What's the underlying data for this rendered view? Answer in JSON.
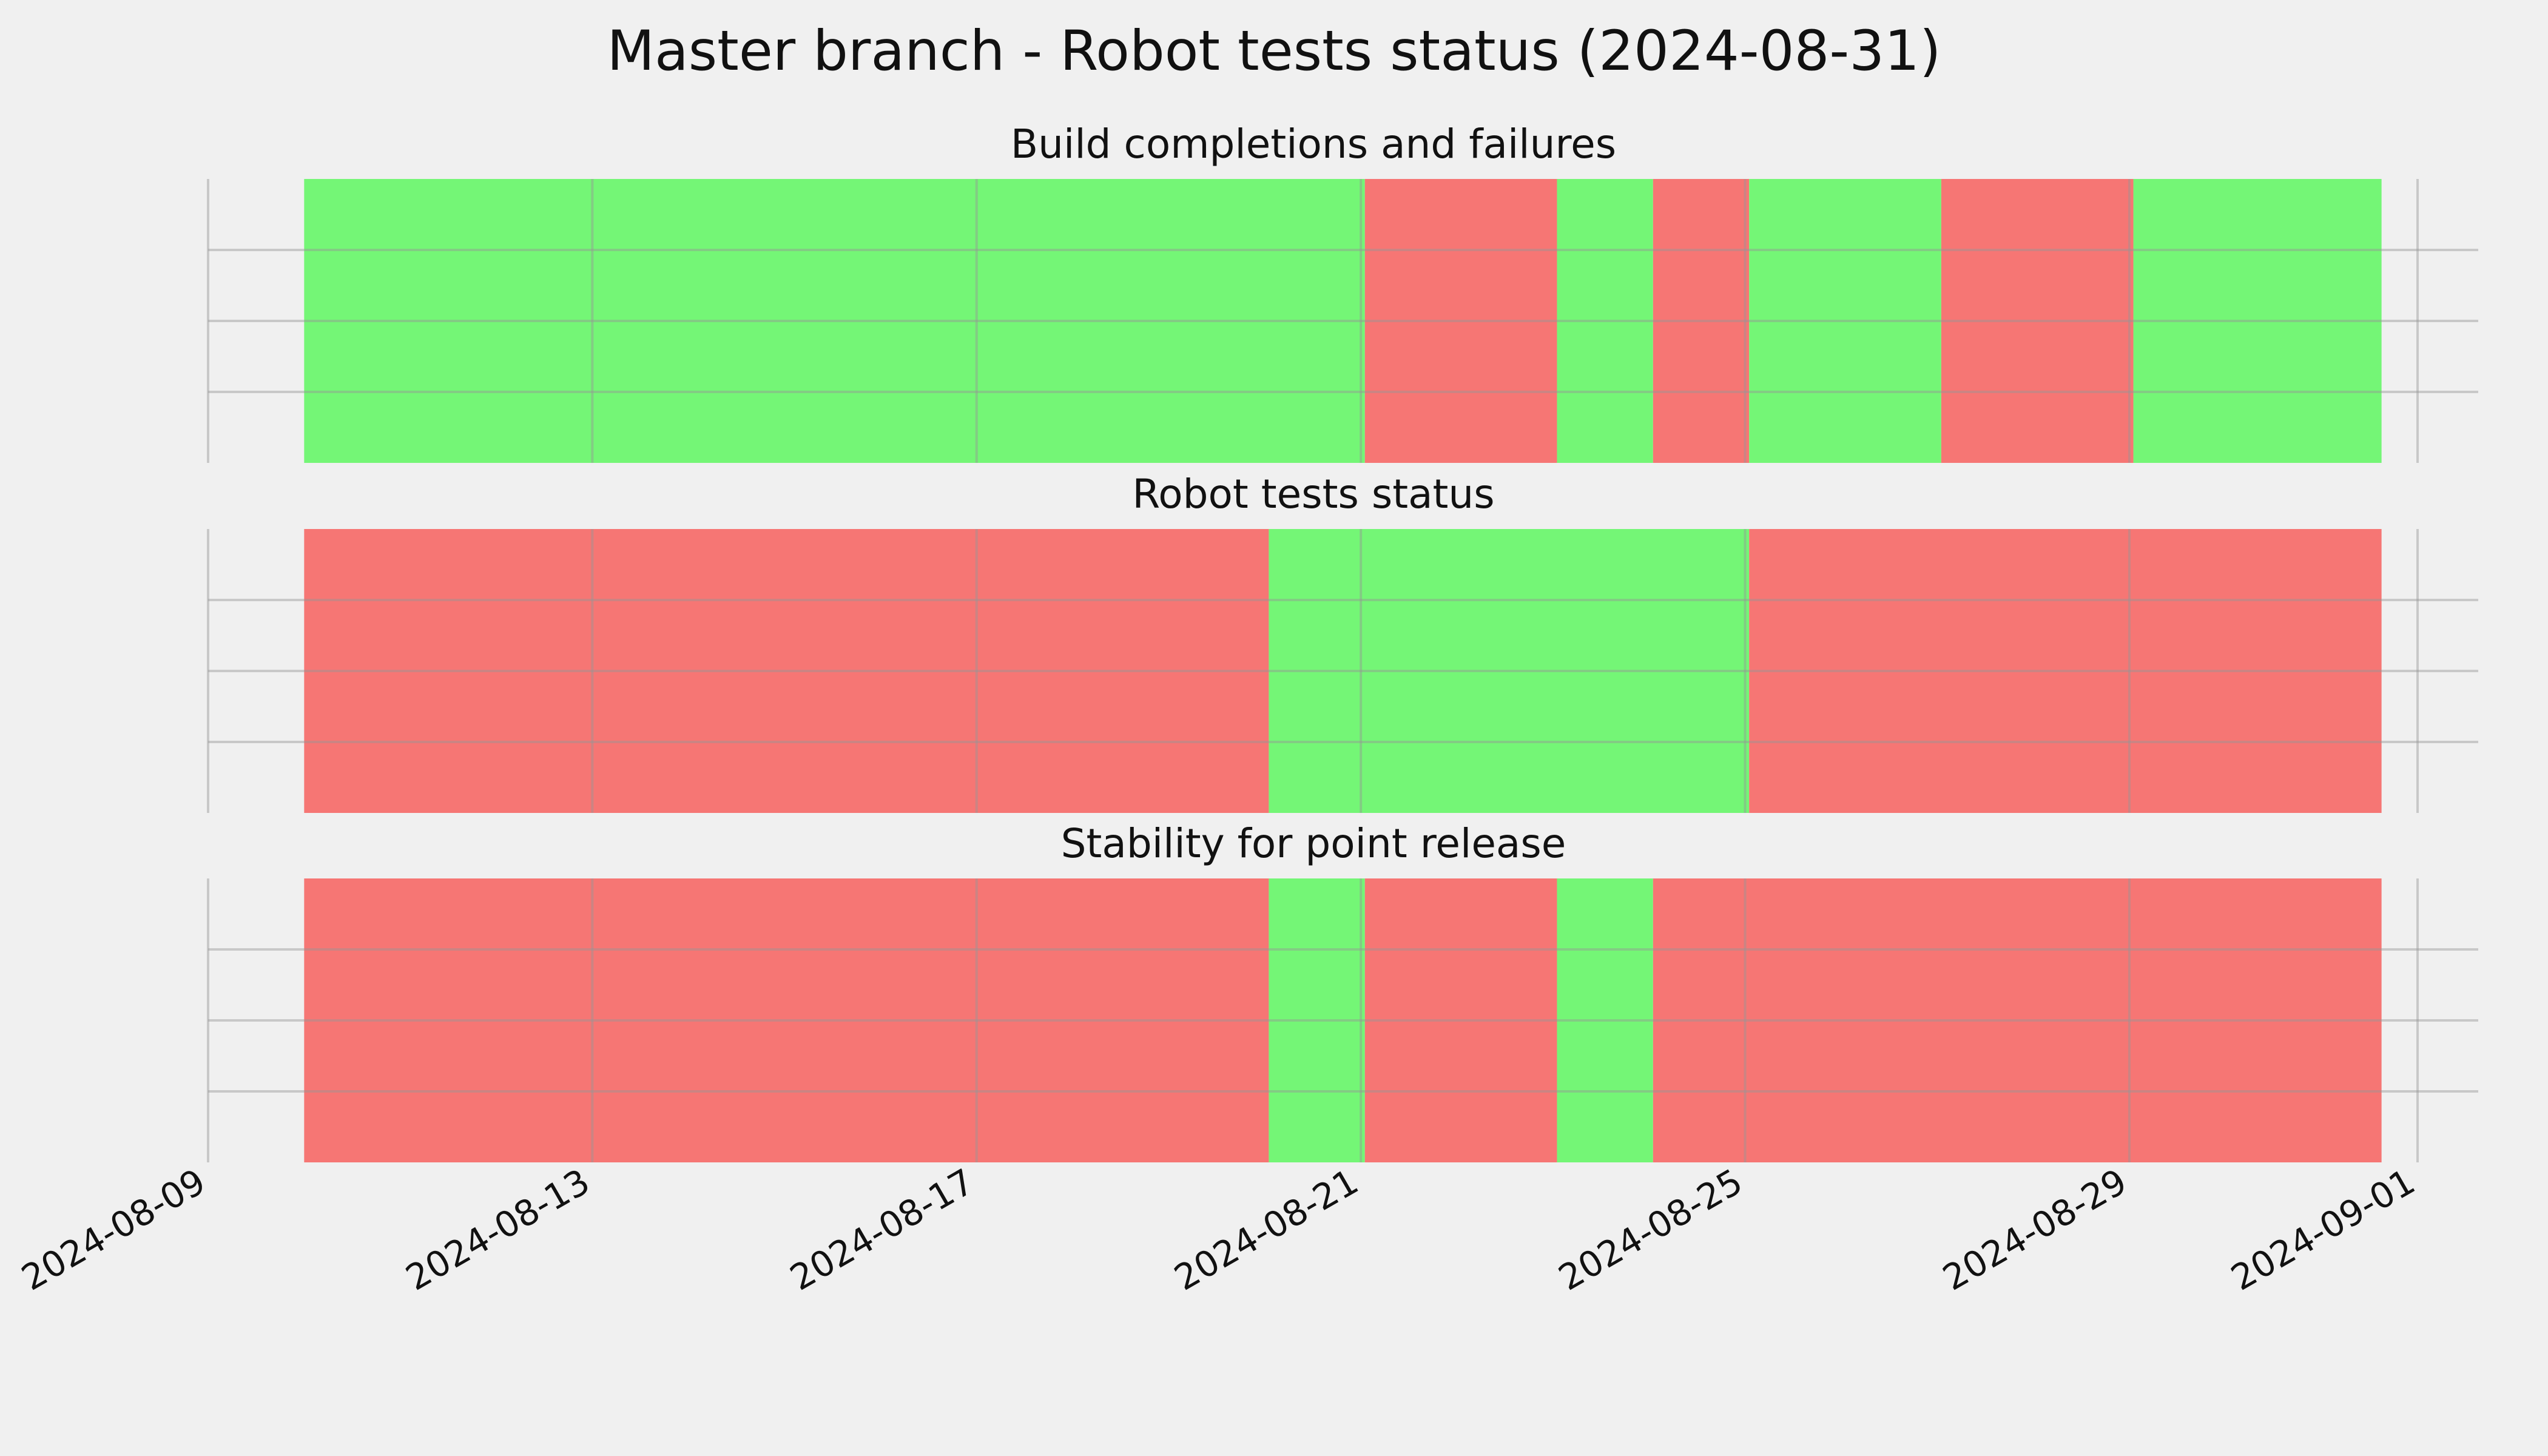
{
  "chart_data": {
    "type": "timeline",
    "title": "Master branch - Robot tests status (2024-08-31)",
    "colors": {
      "pass": "#74f676",
      "fail": "#f67674",
      "background": "#f0f0f0",
      "grid": "#c8c8c8"
    },
    "x_axis": {
      "type": "date",
      "range": [
        "2024-08-09",
        "2024-09-01"
      ],
      "ticks": [
        "2024-08-09",
        "2024-08-13",
        "2024-08-17",
        "2024-08-21",
        "2024-08-25",
        "2024-08-29",
        "2024-09-01"
      ],
      "data_range": [
        "2024-08-10",
        "2024-08-31T15:00"
      ]
    },
    "grid": true,
    "panels": [
      {
        "title": "Build completions and failures",
        "segments": [
          {
            "start": "2024-08-10T00:00",
            "end": "2024-08-21T01:00",
            "status": "pass"
          },
          {
            "start": "2024-08-21T01:00",
            "end": "2024-08-23T01:00",
            "status": "fail"
          },
          {
            "start": "2024-08-23T01:00",
            "end": "2024-08-24T01:00",
            "status": "pass"
          },
          {
            "start": "2024-08-24T01:00",
            "end": "2024-08-25T01:00",
            "status": "fail"
          },
          {
            "start": "2024-08-25T01:00",
            "end": "2024-08-27T01:00",
            "status": "pass"
          },
          {
            "start": "2024-08-27T01:00",
            "end": "2024-08-29T01:00",
            "status": "fail"
          },
          {
            "start": "2024-08-29T01:00",
            "end": "2024-08-31T15:00",
            "status": "pass"
          }
        ]
      },
      {
        "title": "Robot tests status",
        "segments": [
          {
            "start": "2024-08-10T00:00",
            "end": "2024-08-20T01:00",
            "status": "fail"
          },
          {
            "start": "2024-08-20T01:00",
            "end": "2024-08-25T01:00",
            "status": "pass"
          },
          {
            "start": "2024-08-25T01:00",
            "end": "2024-08-31T15:00",
            "status": "fail"
          }
        ]
      },
      {
        "title": "Stability for point release",
        "segments": [
          {
            "start": "2024-08-10T00:00",
            "end": "2024-08-20T01:00",
            "status": "fail"
          },
          {
            "start": "2024-08-20T01:00",
            "end": "2024-08-21T01:00",
            "status": "pass"
          },
          {
            "start": "2024-08-21T01:00",
            "end": "2024-08-23T01:00",
            "status": "fail"
          },
          {
            "start": "2024-08-23T01:00",
            "end": "2024-08-24T01:00",
            "status": "pass"
          },
          {
            "start": "2024-08-24T01:00",
            "end": "2024-08-31T15:00",
            "status": "fail"
          }
        ]
      }
    ]
  }
}
